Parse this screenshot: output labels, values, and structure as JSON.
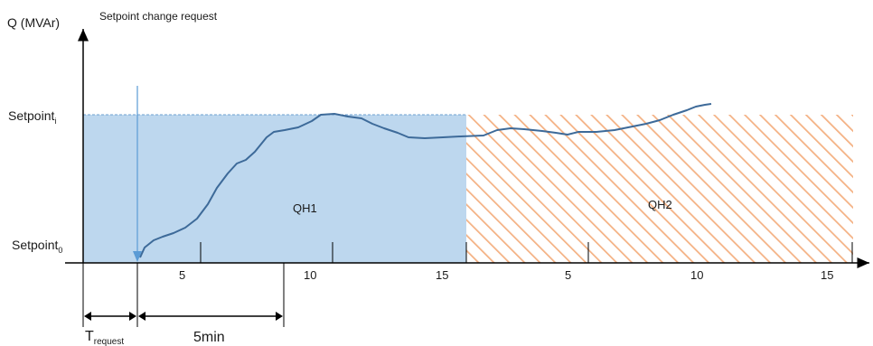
{
  "y_axis_label": "Q (MVAr)",
  "request_label": "Setpoint change request",
  "setpoint_i": {
    "base": "Setpoint",
    "sub": "i"
  },
  "setpoint_0": {
    "base": "Setpoint",
    "sub": "0"
  },
  "regions": {
    "qh1": "QH1",
    "qh2": "QH2"
  },
  "ticks_qh1": [
    "5",
    "10",
    "15"
  ],
  "ticks_qh2": [
    "5",
    "10",
    "15"
  ],
  "t_request": {
    "base": "T",
    "sub": "request"
  },
  "duration_label": "5min",
  "colors": {
    "qh1_fill": "#bdd7ee",
    "qh2_hatch": "#f4b183",
    "curve": "#3d6a99",
    "marker": "#5b9bd5",
    "axis": "#000000"
  }
}
